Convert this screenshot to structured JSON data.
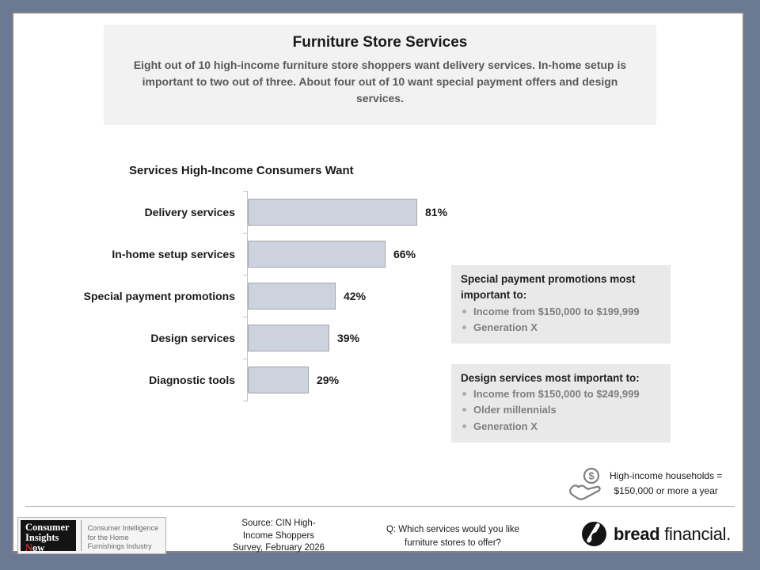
{
  "header": {
    "title": "Furniture Store Services",
    "subtitle": "Eight out of 10 high-income furniture store shoppers want delivery services. In-home setup is important to two out of three. About four out of 10 want special payment offers and design services."
  },
  "chart_data": {
    "type": "bar",
    "orientation": "horizontal",
    "title": "Services High-Income Consumers Want",
    "categories": [
      "Delivery services",
      "In-home setup services",
      "Special payment promotions",
      "Design services",
      "Diagnostic tools"
    ],
    "values": [
      81,
      66,
      42,
      39,
      29
    ],
    "value_labels": [
      "81%",
      "66%",
      "42%",
      "39%",
      "29%"
    ],
    "unit": "%",
    "xlim": [
      0,
      100
    ],
    "grid": false,
    "legend": false,
    "bar_color": "#ccd3de",
    "bar_border_color": "#a6a6a6"
  },
  "callouts": [
    {
      "title": "Special payment promotions most important to:",
      "bullets": [
        "Income from $150,000 to $199,999",
        "Generation X"
      ]
    },
    {
      "title": "Design services most important to:",
      "bullets": [
        "Income from $150,000 to $249,999",
        "Older millennials",
        "Generation X"
      ]
    }
  ],
  "note": {
    "icon": "hand-coin-icon",
    "coin_symbol": "$",
    "lines": [
      "High-income households =",
      "$150,000 or more a year"
    ]
  },
  "footer": {
    "cin_logo": {
      "line1": "Consumer",
      "line2": "Insights",
      "line3_initial": "N",
      "line3_rest": "ow",
      "tagline_lines": [
        "Consumer Intelligence",
        "for the Home",
        "Furnishings Industry"
      ]
    },
    "source_lines": [
      "Source: CIN High-",
      "Income Shoppers",
      "Survey, February 2026"
    ],
    "question_lines": [
      "Q: Which services would you like",
      "furniture stores to offer?"
    ],
    "brand": {
      "bold": "bread",
      "light": "financial."
    }
  },
  "colors": {
    "frame": "#6b7a92",
    "page_bg": "#ffffff",
    "header_bg": "#f2f2f2",
    "subtitle_text": "#595959",
    "bar_fill": "#ccd3de",
    "bar_border": "#a6a6a6",
    "callout_bg": "#e9e9e9",
    "callout_bullet_text": "#7f7f7f",
    "logo_red": "#d03027",
    "icon_gray": "#7f7f7f"
  }
}
